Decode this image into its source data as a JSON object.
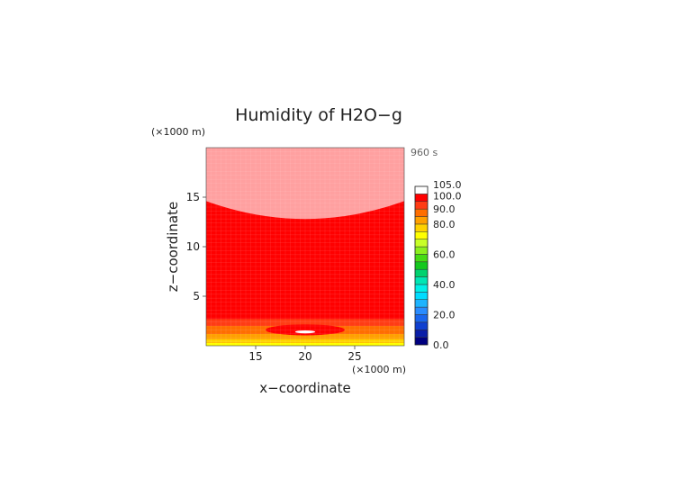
{
  "chart_data": {
    "type": "heatmap",
    "title": "Humidity of H2O−g",
    "time_label": "960 s",
    "xlabel": "x−coordinate",
    "ylabel": "z−coordinate",
    "x_unit": "(×1000 m)",
    "y_unit": "(×1000 m)",
    "xlim": [
      10,
      30
    ],
    "ylim": [
      0,
      20
    ],
    "x_ticks": [
      15,
      20,
      25
    ],
    "y_ticks": [
      5,
      10,
      15
    ],
    "grid": false,
    "legend_position": "right",
    "colorbar": {
      "levels": [
        0,
        5,
        10,
        15,
        20,
        25,
        30,
        35,
        40,
        45,
        50,
        55,
        60,
        65,
        70,
        75,
        80,
        85,
        90,
        95,
        100,
        105
      ],
      "colors": [
        "#000080",
        "#0a1ea8",
        "#1040d0",
        "#1a66ee",
        "#2a8cff",
        "#1eb4ff",
        "#00dcff",
        "#00f0e8",
        "#00e6b4",
        "#00d26e",
        "#14c81e",
        "#46dc14",
        "#8cf01e",
        "#c8ff28",
        "#ffff00",
        "#ffd200",
        "#ffa000",
        "#ff6e00",
        "#ff3c14",
        "#ff0000",
        "#ffffff"
      ],
      "tick_labels": [
        "0.0",
        "20.0",
        "40.0",
        "60.0",
        "80.0",
        "90.0",
        "100.0",
        "105.0"
      ],
      "tick_values": [
        0,
        20,
        40,
        60,
        80,
        90,
        100,
        105
      ]
    },
    "field": {
      "background_value": 97,
      "band_values_bottom_up": [
        {
          "z_from": 0.0,
          "z_to": 0.3,
          "value": 72
        },
        {
          "z_from": 0.3,
          "z_to": 0.7,
          "value": 77
        },
        {
          "z_from": 0.7,
          "z_to": 1.2,
          "value": 82
        },
        {
          "z_from": 1.2,
          "z_to": 2.0,
          "value": 87
        },
        {
          "z_from": 2.0,
          "z_to": 2.7,
          "value": 92
        }
      ],
      "regions": [
        {
          "name": "upper-supersaturated",
          "value": 101,
          "color": "#ffa0a0",
          "z_edges": 14.6,
          "z_center": 12.8
        },
        {
          "name": "lower-moist-core",
          "value": 97,
          "color": "#ff0000",
          "x_center": 20,
          "z_center": 1.6,
          "x_halfwidth": 4.0,
          "z_halfwidth": 0.55
        },
        {
          "name": "lower-peak",
          "value": 101,
          "color": "#ffffff",
          "x_center": 20,
          "z_center": 1.4,
          "x_halfwidth": 1.0,
          "z_halfwidth": 0.15
        }
      ]
    }
  }
}
